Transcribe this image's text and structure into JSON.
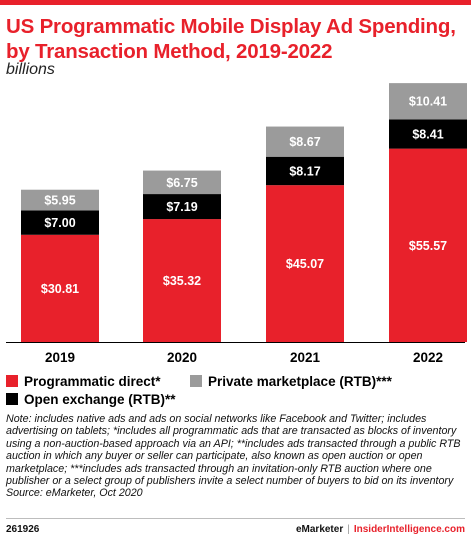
{
  "header": {
    "title": "US Programmatic Mobile Display Ad Spending, by Transaction Method, 2019-2022",
    "subtitle": "billions"
  },
  "colors": {
    "programmatic_direct": "#e8212b",
    "open_exchange": "#000000",
    "private_marketplace": "#9b9b9b",
    "accent": "#e8212b"
  },
  "chart_data": {
    "type": "bar",
    "stacked": true,
    "categories": [
      "2019",
      "2020",
      "2021",
      "2022"
    ],
    "series": [
      {
        "name": "Programmatic direct*",
        "values": [
          30.81,
          35.32,
          45.07,
          55.57
        ],
        "labels": [
          "$30.81",
          "$35.32",
          "$45.07",
          "$55.57"
        ]
      },
      {
        "name": "Open exchange (RTB)**",
        "values": [
          7.0,
          7.19,
          8.17,
          8.41
        ],
        "labels": [
          "$7.00",
          "$7.19",
          "$8.17",
          "$8.41"
        ]
      },
      {
        "name": "Private marketplace (RTB)***",
        "values": [
          5.95,
          6.75,
          8.67,
          10.41
        ],
        "labels": [
          "$5.95",
          "$6.75",
          "$8.67",
          "$10.41"
        ]
      }
    ],
    "grid": false,
    "legend_position": "bottom"
  },
  "legend": {
    "programmatic_direct": "Programmatic direct*",
    "private_marketplace": "Private marketplace (RTB)***",
    "open_exchange": "Open exchange (RTB)**"
  },
  "note": "Note: includes native ads and ads on social networks like Facebook and Twitter; includes advertising on tablets; *includes all programmatic ads that are transacted as blocks of inventory using a non-auction-based approach via an API; **includes ads transacted through a public RTB auction in which any buyer or seller can participate, also known as open auction or open marketplace; ***includes ads transacted through an invitation-only RTB auction where one publisher or a select group of publishers invite a select number of buyers to bid on its inventory",
  "source": "Source: eMarketer, Oct 2020",
  "footer": {
    "chart_id": "261926",
    "brand": "eMarketer",
    "site": "InsiderIntelligence.com"
  }
}
